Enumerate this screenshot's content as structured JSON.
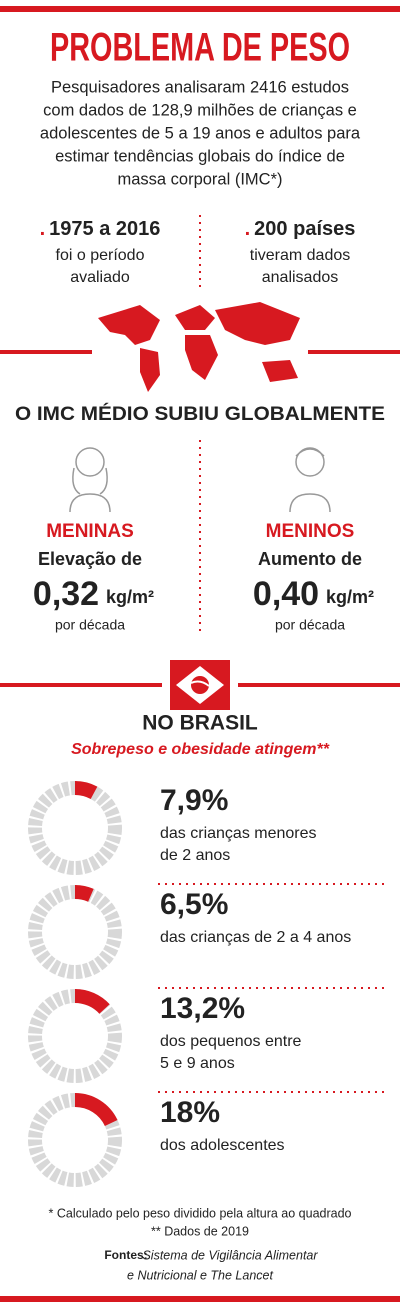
{
  "header": {
    "title": "PROBLEMA DE PESO",
    "intro": [
      "Pesquisadores analisaram 2416 estudos",
      "com dados de 128,9 milhões de crianças e",
      "adolescentes de 5 a 19 anos e adultos para",
      "estimar tendências globais do índice de",
      "massa corporal (IMC*)"
    ]
  },
  "stats": [
    {
      "headline": "1975 a 2016",
      "lines": [
        "foi o período",
        "avaliado"
      ]
    },
    {
      "headline": "200 países",
      "lines": [
        "tiveram dados",
        "analisados"
      ]
    }
  ],
  "global": {
    "title": "O IMC MÉDIO SUBIU GLOBALMENTE",
    "groups": [
      {
        "name": "MENINAS",
        "label": "Elevação de",
        "number": "0,32",
        "unit": "kg/m²",
        "period": "por década"
      },
      {
        "name": "MENINOS",
        "label": "Aumento de",
        "number": "0,40",
        "unit": "kg/m²",
        "period": "por década"
      }
    ]
  },
  "brasil": {
    "title": "NO BRASIL",
    "subtitle": "Sobrepeso e obesidade atingem**",
    "items": [
      {
        "value": 7.9,
        "value_label": "7,9%",
        "lines": [
          "das crianças menores",
          "de 2 anos"
        ]
      },
      {
        "value": 6.5,
        "value_label": "6,5%",
        "lines": [
          "das crianças de 2 a 4 anos"
        ]
      },
      {
        "value": 13.2,
        "value_label": "13,2%",
        "lines": [
          "dos pequenos entre",
          "5 e 9 anos"
        ]
      },
      {
        "value": 18,
        "value_label": "18%",
        "lines": [
          "dos adolescentes"
        ]
      }
    ]
  },
  "footer": {
    "notes": [
      "* Calculado pelo peso dividido pela altura ao quadrado",
      "** Dados de 2019"
    ],
    "sources_label": "Fontes:",
    "sources": [
      "Sistema de Vigilância Alimentar",
      "e Nutricional e The Lancet"
    ]
  }
}
